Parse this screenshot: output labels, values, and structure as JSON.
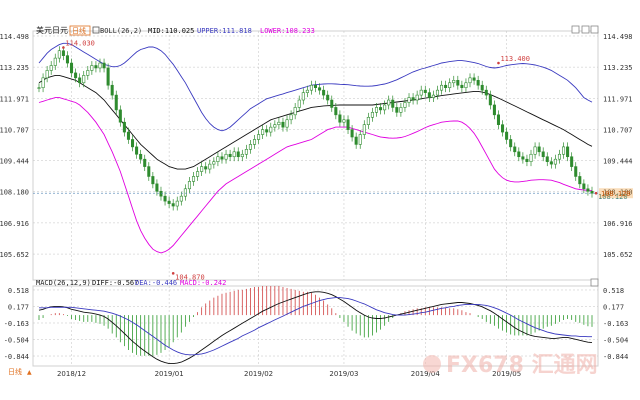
{
  "header": {
    "symbol": "美元日元",
    "period": "日线",
    "boll_label": "BOLL(26,2)",
    "mid_label": "MID:110.025",
    "upper_label": "UPPER:111.818",
    "lower_label": "LOWER:108.233"
  },
  "macd_header": {
    "macd_label": "MACD(26,12,9)",
    "diff_label": "DIFF:-0.567",
    "dea_label": "DEA:-0.446",
    "macd_value_label": "MACD:-0.242"
  },
  "period_button": "日线",
  "watermark": "FX678 汇通网",
  "colors": {
    "up": "#2e8b2e",
    "down": "#2e8b2e",
    "mid": "#111111",
    "upper": "#3a3ac0",
    "lower": "#e000e0",
    "diff": "#111111",
    "dea": "#3a3ac0",
    "macd_pos": "#d04040",
    "macd_neg": "#2e9a2e",
    "price_tag": "#f0a040",
    "grid": "#c0c0c0"
  },
  "chart_data": [
    {
      "type": "candlestick",
      "title": "美元日元",
      "y_ticks": [
        "114.498",
        "113.235",
        "111.971",
        "110.707",
        "109.444",
        "108.180",
        "106.916",
        "105.652"
      ],
      "ylim": [
        104.6,
        114.7
      ],
      "x_ticks": [
        "2018/12",
        "2019/01",
        "2019/02",
        "2019/03",
        "2019/04",
        "2019/05"
      ],
      "x_tick_index": [
        8,
        32,
        54,
        75,
        95,
        115
      ],
      "current_price": "108.120",
      "annotations": [
        {
          "label": "114.030",
          "index": 6,
          "value": 114.03
        },
        {
          "label": "104.870",
          "index": 33,
          "value": 104.87
        },
        {
          "label": "113.400",
          "index": 113,
          "value": 113.4
        },
        {
          "label": "108.120",
          "index": 137,
          "value": 108.12
        }
      ],
      "close": [
        112.4,
        112.8,
        113.1,
        113.3,
        113.6,
        113.9,
        113.7,
        113.4,
        113.0,
        112.8,
        112.6,
        112.9,
        113.1,
        113.3,
        113.2,
        113.4,
        113.2,
        112.5,
        112.1,
        111.5,
        111.0,
        110.6,
        110.3,
        110.0,
        109.7,
        109.5,
        109.2,
        108.8,
        108.5,
        108.2,
        108.0,
        107.8,
        107.7,
        107.6,
        107.8,
        108.0,
        108.3,
        108.6,
        108.8,
        109.0,
        109.2,
        109.1,
        109.3,
        109.4,
        109.6,
        109.5,
        109.7,
        109.6,
        109.8,
        109.6,
        109.7,
        109.9,
        110.1,
        110.3,
        110.5,
        110.7,
        110.6,
        110.8,
        110.9,
        111.0,
        110.8,
        111.1,
        111.3,
        111.6,
        111.9,
        112.2,
        112.3,
        112.5,
        112.4,
        112.3,
        112.1,
        111.9,
        111.6,
        111.3,
        111.0,
        111.1,
        110.7,
        110.4,
        110.1,
        110.5,
        110.9,
        111.2,
        111.4,
        111.6,
        111.5,
        111.7,
        111.9,
        111.6,
        111.4,
        111.6,
        111.8,
        112.0,
        111.9,
        112.1,
        112.3,
        112.2,
        112.0,
        112.1,
        112.3,
        112.5,
        112.4,
        112.6,
        112.7,
        112.5,
        112.4,
        112.6,
        112.8,
        112.7,
        112.5,
        112.3,
        112.1,
        111.7,
        111.3,
        110.9,
        110.6,
        110.3,
        110.0,
        109.8,
        109.6,
        109.5,
        109.4,
        109.7,
        110.0,
        109.8,
        109.6,
        109.4,
        109.3,
        109.5,
        109.7,
        110.0,
        109.6,
        109.2,
        108.8,
        108.5,
        108.3,
        108.2,
        108.12
      ],
      "mid": [
        112.6,
        112.7,
        112.8,
        112.85,
        112.9,
        112.9,
        112.85,
        112.8,
        112.75,
        112.7,
        112.6,
        112.5,
        112.4,
        112.3,
        112.2,
        112.05,
        111.9,
        111.7,
        111.5,
        111.3,
        111.1,
        110.9,
        110.7,
        110.5,
        110.3,
        110.1,
        109.95,
        109.8,
        109.65,
        109.5,
        109.4,
        109.3,
        109.2,
        109.15,
        109.1,
        109.1,
        109.1,
        109.15,
        109.2,
        109.3,
        109.4,
        109.5,
        109.6,
        109.7,
        109.8,
        109.9,
        110.0,
        110.1,
        110.2,
        110.3,
        110.4,
        110.5,
        110.6,
        110.7,
        110.8,
        110.9,
        111.0,
        111.1,
        111.15,
        111.2,
        111.25,
        111.3,
        111.35,
        111.4,
        111.45,
        111.5,
        111.55,
        111.6,
        111.62,
        111.64,
        111.66,
        111.67,
        111.68,
        111.69,
        111.7,
        111.7,
        111.7,
        111.7,
        111.7,
        111.7,
        111.7,
        111.7,
        111.7,
        111.72,
        111.74,
        111.76,
        111.78,
        111.8,
        111.82,
        111.84,
        111.86,
        111.88,
        111.9,
        111.92,
        111.95,
        111.98,
        112.0,
        112.02,
        112.05,
        112.08,
        112.1,
        112.12,
        112.15,
        112.17,
        112.19,
        112.21,
        112.23,
        112.25,
        112.25,
        112.22,
        112.18,
        112.12,
        112.05,
        111.98,
        111.9,
        111.82,
        111.74,
        111.66,
        111.58,
        111.5,
        111.42,
        111.34,
        111.26,
        111.18,
        111.1,
        111.02,
        110.94,
        110.86,
        110.78,
        110.7,
        110.6,
        110.5,
        110.4,
        110.3,
        110.2,
        110.1,
        110.025
      ],
      "upper": [
        113.4,
        113.6,
        113.8,
        113.95,
        114.05,
        114.15,
        114.2,
        114.2,
        114.15,
        114.05,
        113.95,
        113.85,
        113.75,
        113.65,
        113.55,
        113.45,
        113.35,
        113.3,
        113.25,
        113.25,
        113.3,
        113.4,
        113.55,
        113.7,
        113.85,
        113.95,
        114.0,
        114.05,
        114.05,
        114.0,
        113.9,
        113.75,
        113.55,
        113.35,
        113.1,
        112.85,
        112.6,
        112.3,
        112.0,
        111.7,
        111.4,
        111.15,
        110.95,
        110.8,
        110.7,
        110.65,
        110.7,
        110.8,
        110.95,
        111.1,
        111.25,
        111.4,
        111.55,
        111.65,
        111.75,
        111.85,
        111.95,
        112.0,
        112.05,
        112.1,
        112.15,
        112.2,
        112.25,
        112.3,
        112.35,
        112.4,
        112.45,
        112.5,
        112.52,
        112.54,
        112.55,
        112.56,
        112.56,
        112.55,
        112.54,
        112.53,
        112.52,
        112.5,
        112.48,
        112.47,
        112.46,
        112.46,
        112.47,
        112.49,
        112.52,
        112.55,
        112.6,
        112.66,
        112.72,
        112.8,
        112.88,
        112.96,
        113.04,
        113.1,
        113.16,
        113.2,
        113.25,
        113.3,
        113.35,
        113.4,
        113.43,
        113.46,
        113.48,
        113.5,
        113.5,
        113.48,
        113.45,
        113.42,
        113.38,
        113.32,
        113.26,
        113.22,
        113.2,
        113.22,
        113.26,
        113.3,
        113.33,
        113.35,
        113.37,
        113.38,
        113.37,
        113.35,
        113.32,
        113.28,
        113.23,
        113.17,
        113.1,
        113.0,
        112.9,
        112.8,
        112.7,
        112.55,
        112.4,
        112.2,
        112.0,
        111.9,
        111.818
      ],
      "lower": [
        111.8,
        111.85,
        111.9,
        111.95,
        112.0,
        112.0,
        111.95,
        111.9,
        111.85,
        111.8,
        111.7,
        111.55,
        111.4,
        111.2,
        111.0,
        110.75,
        110.5,
        110.15,
        109.8,
        109.4,
        109.0,
        108.5,
        108.0,
        107.5,
        107.0,
        106.6,
        106.3,
        106.05,
        105.85,
        105.75,
        105.7,
        105.75,
        105.85,
        106.0,
        106.2,
        106.4,
        106.6,
        106.8,
        107.0,
        107.2,
        107.4,
        107.6,
        107.8,
        108.0,
        108.2,
        108.35,
        108.5,
        108.6,
        108.7,
        108.8,
        108.9,
        109.0,
        109.1,
        109.2,
        109.3,
        109.4,
        109.5,
        109.6,
        109.7,
        109.8,
        109.9,
        110.0,
        110.05,
        110.1,
        110.15,
        110.2,
        110.25,
        110.3,
        110.4,
        110.5,
        110.6,
        110.7,
        110.75,
        110.8,
        110.8,
        110.8,
        110.8,
        110.75,
        110.7,
        110.65,
        110.6,
        110.55,
        110.5,
        110.45,
        110.4,
        110.38,
        110.36,
        110.35,
        110.36,
        110.38,
        110.42,
        110.48,
        110.55,
        110.62,
        110.7,
        110.78,
        110.85,
        110.9,
        110.95,
        111.0,
        111.02,
        111.04,
        111.05,
        111.05,
        111.0,
        110.9,
        110.75,
        110.55,
        110.3,
        110.0,
        109.7,
        109.4,
        109.1,
        108.9,
        108.75,
        108.65,
        108.6,
        108.58,
        108.58,
        108.6,
        108.62,
        108.65,
        108.66,
        108.67,
        108.67,
        108.66,
        108.65,
        108.6,
        108.55,
        108.48,
        108.42,
        108.36,
        108.3,
        108.27,
        108.25,
        108.24,
        108.233
      ]
    },
    {
      "type": "macd",
      "title": "MACD(26,12,9)",
      "y_ticks": [
        "0.518",
        "0.177",
        "-0.163",
        "-0.504",
        "-0.844"
      ],
      "ylim": [
        -1.05,
        0.6
      ],
      "diff": [
        0.1,
        0.12,
        0.15,
        0.17,
        0.18,
        0.18,
        0.17,
        0.15,
        0.12,
        0.1,
        0.08,
        0.06,
        0.05,
        0.04,
        0.02,
        0.0,
        -0.03,
        -0.08,
        -0.15,
        -0.22,
        -0.3,
        -0.38,
        -0.46,
        -0.54,
        -0.61,
        -0.68,
        -0.74,
        -0.8,
        -0.86,
        -0.91,
        -0.95,
        -0.98,
        -1.0,
        -1.0,
        -0.99,
        -0.97,
        -0.93,
        -0.89,
        -0.84,
        -0.78,
        -0.72,
        -0.66,
        -0.6,
        -0.54,
        -0.48,
        -0.42,
        -0.37,
        -0.32,
        -0.27,
        -0.22,
        -0.17,
        -0.12,
        -0.07,
        -0.02,
        0.03,
        0.08,
        0.12,
        0.16,
        0.2,
        0.24,
        0.27,
        0.3,
        0.33,
        0.36,
        0.39,
        0.42,
        0.45,
        0.47,
        0.48,
        0.48,
        0.47,
        0.45,
        0.42,
        0.38,
        0.33,
        0.28,
        0.22,
        0.16,
        0.1,
        0.05,
        0.0,
        -0.04,
        -0.06,
        -0.07,
        -0.07,
        -0.06,
        -0.04,
        -0.02,
        0.0,
        0.02,
        0.04,
        0.06,
        0.08,
        0.1,
        0.12,
        0.14,
        0.16,
        0.18,
        0.2,
        0.22,
        0.23,
        0.24,
        0.25,
        0.26,
        0.26,
        0.25,
        0.24,
        0.22,
        0.2,
        0.17,
        0.13,
        0.09,
        0.04,
        -0.02,
        -0.08,
        -0.14,
        -0.2,
        -0.26,
        -0.31,
        -0.35,
        -0.39,
        -0.42,
        -0.44,
        -0.45,
        -0.46,
        -0.47,
        -0.48,
        -0.48,
        -0.47,
        -0.46,
        -0.46,
        -0.48,
        -0.5,
        -0.52,
        -0.54,
        -0.56,
        -0.567
      ],
      "dea": [
        0.15,
        0.15,
        0.15,
        0.16,
        0.16,
        0.16,
        0.16,
        0.16,
        0.16,
        0.15,
        0.14,
        0.13,
        0.12,
        0.11,
        0.1,
        0.09,
        0.08,
        0.06,
        0.04,
        0.01,
        -0.02,
        -0.06,
        -0.1,
        -0.15,
        -0.2,
        -0.26,
        -0.32,
        -0.38,
        -0.44,
        -0.5,
        -0.56,
        -0.62,
        -0.67,
        -0.72,
        -0.76,
        -0.79,
        -0.81,
        -0.82,
        -0.82,
        -0.81,
        -0.8,
        -0.78,
        -0.75,
        -0.72,
        -0.68,
        -0.64,
        -0.6,
        -0.56,
        -0.52,
        -0.48,
        -0.43,
        -0.39,
        -0.35,
        -0.31,
        -0.26,
        -0.22,
        -0.18,
        -0.14,
        -0.1,
        -0.06,
        -0.02,
        0.02,
        0.06,
        0.1,
        0.14,
        0.18,
        0.21,
        0.24,
        0.27,
        0.3,
        0.32,
        0.34,
        0.35,
        0.36,
        0.36,
        0.35,
        0.34,
        0.32,
        0.29,
        0.26,
        0.23,
        0.19,
        0.15,
        0.11,
        0.08,
        0.05,
        0.03,
        0.01,
        0.0,
        0.0,
        0.0,
        0.01,
        0.02,
        0.03,
        0.05,
        0.06,
        0.08,
        0.1,
        0.12,
        0.14,
        0.15,
        0.17,
        0.18,
        0.2,
        0.21,
        0.22,
        0.22,
        0.22,
        0.22,
        0.21,
        0.2,
        0.18,
        0.15,
        0.12,
        0.08,
        0.04,
        0.0,
        -0.05,
        -0.1,
        -0.14,
        -0.18,
        -0.22,
        -0.26,
        -0.29,
        -0.32,
        -0.35,
        -0.37,
        -0.39,
        -0.4,
        -0.41,
        -0.42,
        -0.43,
        -0.43,
        -0.44,
        -0.44,
        -0.445,
        -0.446
      ]
    }
  ]
}
